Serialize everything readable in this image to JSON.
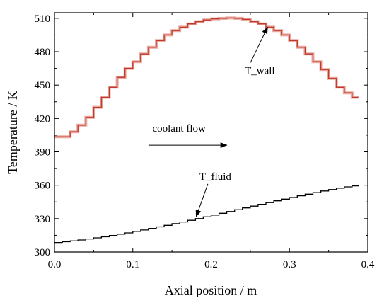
{
  "chart_data": {
    "type": "line",
    "xlabel": "Axial position / m",
    "ylabel": "Temperature / K",
    "xlim": [
      0,
      0.4
    ],
    "ylim": [
      300,
      515
    ],
    "xticks": [
      "0.0",
      "0.1",
      "0.2",
      "0.3",
      "0.4"
    ],
    "xtick_values": [
      0,
      0.1,
      0.2,
      0.3,
      0.4
    ],
    "yticks": [
      "300",
      "330",
      "360",
      "390",
      "420",
      "450",
      "480",
      "510"
    ],
    "ytick_values": [
      300,
      330,
      360,
      390,
      420,
      450,
      480,
      510
    ],
    "grid": false,
    "series": [
      {
        "name": "T_wall",
        "step": true,
        "color": "#c0392b",
        "shadow_color": "#e8a8a0",
        "x": [
          0.0,
          0.01,
          0.02,
          0.03,
          0.04,
          0.05,
          0.06,
          0.07,
          0.08,
          0.09,
          0.1,
          0.11,
          0.12,
          0.13,
          0.14,
          0.15,
          0.16,
          0.17,
          0.18,
          0.19,
          0.2,
          0.21,
          0.22,
          0.23,
          0.24,
          0.25,
          0.26,
          0.27,
          0.28,
          0.29,
          0.3,
          0.31,
          0.32,
          0.33,
          0.34,
          0.35,
          0.36,
          0.37,
          0.38,
          0.388
        ],
        "y": [
          403.5,
          403.5,
          408,
          414,
          421,
          430,
          439,
          448,
          457,
          465,
          471,
          478,
          484,
          490,
          495,
          499,
          502,
          505,
          507,
          508.5,
          509.5,
          510,
          510.3,
          510,
          509,
          507,
          505,
          502,
          499,
          495,
          490,
          484,
          478,
          471,
          464,
          456,
          448,
          443,
          439,
          439
        ]
      },
      {
        "name": "T_fluid",
        "step": true,
        "color": "#000000",
        "x": [
          0.0,
          0.01,
          0.02,
          0.03,
          0.04,
          0.05,
          0.06,
          0.07,
          0.08,
          0.09,
          0.1,
          0.11,
          0.12,
          0.13,
          0.14,
          0.15,
          0.16,
          0.17,
          0.18,
          0.19,
          0.2,
          0.21,
          0.22,
          0.23,
          0.24,
          0.25,
          0.26,
          0.27,
          0.28,
          0.29,
          0.3,
          0.31,
          0.32,
          0.33,
          0.34,
          0.35,
          0.36,
          0.37,
          0.38,
          0.388
        ],
        "y": [
          308.5,
          309.2,
          310,
          310.8,
          311.7,
          312.7,
          313.7,
          314.8,
          316,
          317.2,
          318.5,
          319.8,
          321.2,
          322.6,
          324,
          325.5,
          327,
          328.5,
          330,
          331.6,
          333.2,
          334.8,
          336.4,
          338,
          339.6,
          341.2,
          342.8,
          344.4,
          346,
          347.5,
          349,
          350.5,
          352,
          353.4,
          354.8,
          356.1,
          357.4,
          358.5,
          359.4,
          359.8
        ]
      }
    ],
    "annotations": [
      {
        "text": "T_wall",
        "text_x": 0.243,
        "text_y": 460,
        "arrow_to_x": 0.272,
        "arrow_to_y": 502
      },
      {
        "text": "T_fluid",
        "text_x": 0.185,
        "text_y": 365,
        "arrow_to_x": 0.181,
        "arrow_to_y": 332
      },
      {
        "text": "coolant flow",
        "text_x": 0.125,
        "text_y": 408,
        "arrow_from_x": 0.12,
        "arrow_to_x": 0.22,
        "arrow_y": 396
      }
    ]
  }
}
